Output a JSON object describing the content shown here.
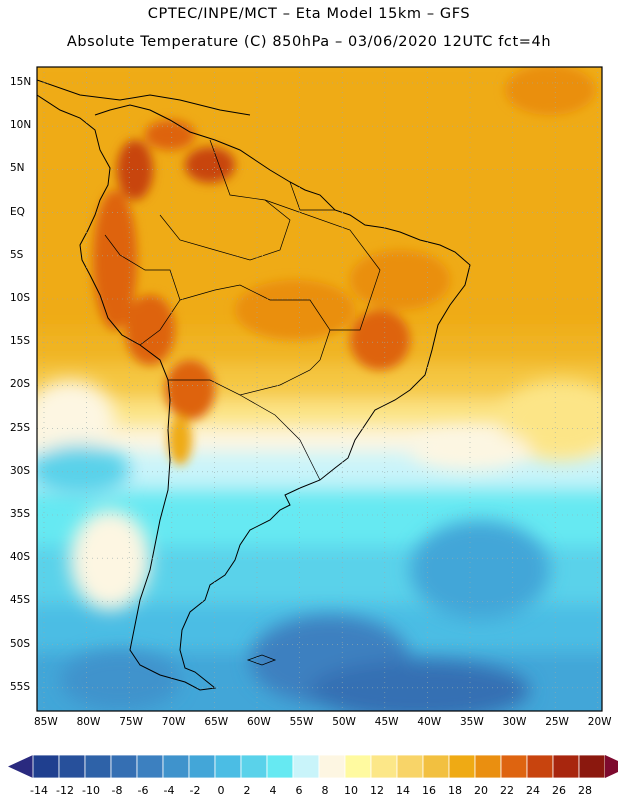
{
  "header": {
    "line1": "CPTEC/INPE/MCT –  Eta Model 15km – GFS",
    "line2": "Absolute Temperature (C) 850hPa – 03/06/2020 12UTC fct=4h"
  },
  "map": {
    "lon_labels": [
      "85W",
      "80W",
      "75W",
      "70W",
      "65W",
      "60W",
      "55W",
      "50W",
      "45W",
      "40W",
      "35W",
      "30W",
      "25W",
      "20W"
    ],
    "lat_labels": [
      "15N",
      "10N",
      "5N",
      "EQ",
      "5S",
      "10S",
      "15S",
      "20S",
      "25S",
      "30S",
      "35S",
      "40S",
      "45S",
      "50S",
      "55S"
    ]
  },
  "colorbar": {
    "labels": [
      "-14",
      "-12",
      "-10",
      "-8",
      "-6",
      "-4",
      "-2",
      "0",
      "2",
      "4",
      "6",
      "8",
      "10",
      "12",
      "14",
      "16",
      "18",
      "20",
      "22",
      "24",
      "26",
      "28"
    ],
    "colors": [
      "#1f3f8f",
      "#27509b",
      "#2e62a8",
      "#356fb3",
      "#3c80c0",
      "#3f93cc",
      "#43a6d8",
      "#4bbde4",
      "#5ad2ea",
      "#66e9f2",
      "#c9f4fa",
      "#fdf6e2",
      "#fffaa0",
      "#fce788",
      "#f8d468",
      "#f2c040",
      "#efaa14",
      "#ea8f10",
      "#de6410",
      "#c8440e",
      "#a8260e",
      "#8b180e"
    ],
    "end_low": "#2a2a7f",
    "end_high": "#7e0a2e"
  }
}
